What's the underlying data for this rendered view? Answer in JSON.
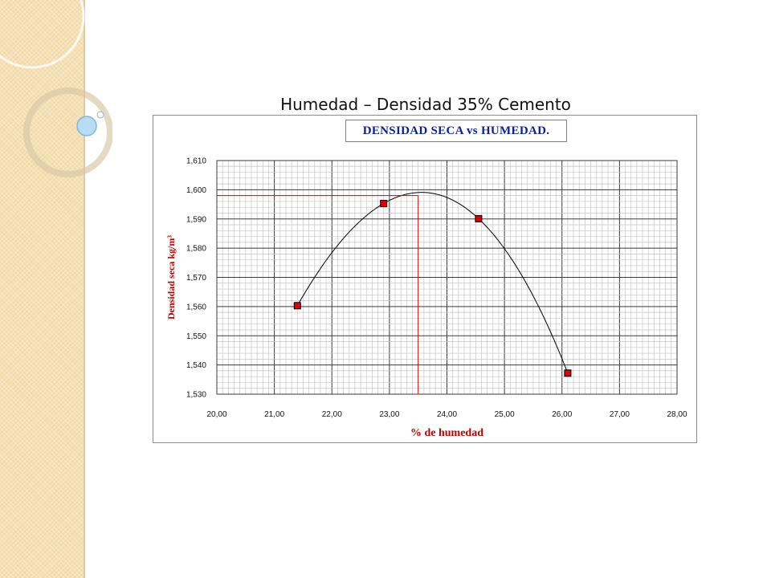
{
  "slide": {
    "title": "Humedad – Densidad 35% Cemento"
  },
  "colors": {
    "side_strip": "#f5e0b3",
    "marker": "#e00000",
    "curve": "#000000",
    "guide_line": "#e00000",
    "axis_label": "#c00000",
    "box_title": "#0b1f9c"
  },
  "chart_data": {
    "type": "scatter",
    "title": "DENSIDAD SECA vs HUMEDAD.",
    "xlabel": "% de humedad",
    "ylabel": "Densidad seca kg/m³",
    "xlim": [
      20,
      28
    ],
    "ylim": [
      1.53,
      1.61
    ],
    "x_ticks": [
      "20,00",
      "21,00",
      "22,00",
      "23,00",
      "24,00",
      "25,00",
      "26,00",
      "27,00",
      "28,00"
    ],
    "y_ticks": [
      "1,530",
      "1,540",
      "1,550",
      "1,560",
      "1,570",
      "1,580",
      "1,590",
      "1,600",
      "1,610"
    ],
    "grid": true,
    "series": [
      {
        "points": [
          {
            "x": 21.4,
            "y": 1.5603
          },
          {
            "x": 22.9,
            "y": 1.5953
          },
          {
            "x": 24.55,
            "y": 1.5901
          },
          {
            "x": 26.1,
            "y": 1.5372
          }
        ]
      }
    ],
    "optimum": {
      "x": 23.5,
      "y": 1.598
    }
  }
}
